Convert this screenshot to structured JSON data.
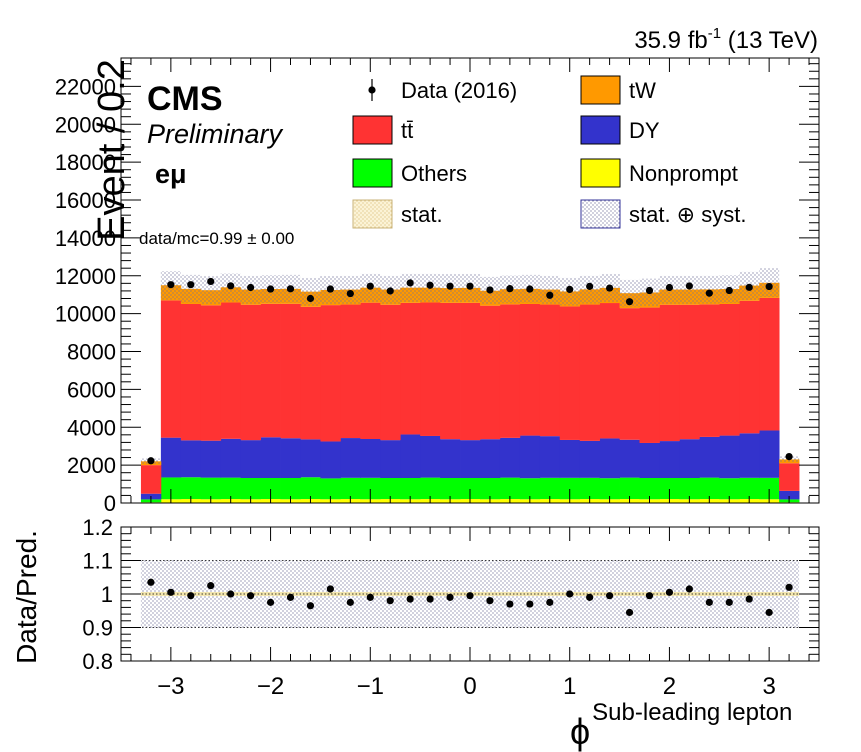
{
  "header": {
    "lumi_value": "35.9 fb",
    "lumi_sup": "-1",
    "lumi_energy": " (13 TeV)",
    "cms": "CMS",
    "preliminary": "Preliminary",
    "channel": "eμ",
    "ratio_text": "data/mc=0.99 ± 0.00"
  },
  "legend": [
    {
      "label": "Data (2016)",
      "kind": "data",
      "color": "#000000"
    },
    {
      "label": "tW",
      "kind": "fill",
      "color": "#ff9900"
    },
    {
      "label": "tt̄",
      "kind": "fill",
      "color": "#ff3333"
    },
    {
      "label": "DY",
      "kind": "fill",
      "color": "#3333cc"
    },
    {
      "label": "Others",
      "kind": "fill",
      "color": "#00ff00"
    },
    {
      "label": "Nonprompt",
      "kind": "fill",
      "color": "#ffff00"
    },
    {
      "label": "stat.",
      "kind": "hatch-stat",
      "color": "#f0e0a0"
    },
    {
      "label": "stat. ⊕ syst.",
      "kind": "hatch-syst",
      "color": "#8888aa"
    }
  ],
  "chart_data": [
    {
      "type": "bar",
      "stacked": true,
      "xlabel": "ϕ",
      "xlabel_sub": "Sub-leading lepton",
      "ylabel": "Event / 0.2",
      "xlim": [
        -3.5,
        3.5
      ],
      "ylim": [
        0,
        23500
      ],
      "yticks": [
        0,
        2000,
        4000,
        6000,
        8000,
        10000,
        12000,
        14000,
        16000,
        18000,
        20000,
        22000
      ],
      "bin_edges": [
        -3.3,
        -3.1,
        -2.9,
        -2.7,
        -2.5,
        -2.3,
        -2.1,
        -1.9,
        -1.7,
        -1.5,
        -1.3,
        -1.1,
        -0.9,
        -0.7,
        -0.5,
        -0.3,
        -0.1,
        0.1,
        0.3,
        0.5,
        0.7,
        0.9,
        1.1,
        1.3,
        1.5,
        1.7,
        1.9,
        2.1,
        2.3,
        2.5,
        2.7,
        2.9,
        3.1,
        3.3
      ],
      "series": [
        {
          "name": "Nonprompt",
          "color": "#ffff00",
          "values": [
            40,
            200,
            210,
            200,
            210,
            200,
            210,
            200,
            210,
            200,
            210,
            200,
            210,
            200,
            210,
            200,
            210,
            200,
            210,
            200,
            210,
            200,
            210,
            200,
            210,
            200,
            210,
            200,
            210,
            200,
            210,
            200,
            40
          ]
        },
        {
          "name": "Others",
          "color": "#00ff00",
          "values": [
            150,
            1150,
            1150,
            1140,
            1130,
            1120,
            1110,
            1120,
            1150,
            1100,
            1120,
            1130,
            1110,
            1120,
            1130,
            1120,
            1110,
            1120,
            1130,
            1110,
            1120,
            1130,
            1120,
            1110,
            1130,
            1120,
            1110,
            1120,
            1130,
            1110,
            1120,
            1130,
            150
          ]
        },
        {
          "name": "DY",
          "color": "#3333cc",
          "values": [
            300,
            2100,
            1950,
            1950,
            2050,
            2000,
            2150,
            2100,
            2000,
            1950,
            2100,
            2050,
            2000,
            2300,
            2200,
            2050,
            2000,
            2050,
            2100,
            2250,
            2200,
            2000,
            1950,
            2100,
            2000,
            1850,
            1950,
            2050,
            2150,
            2250,
            2350,
            2500,
            450
          ]
        },
        {
          "name": "tt̄",
          "color": "#ff3333",
          "values": [
            1510,
            7250,
            7200,
            7150,
            7200,
            7150,
            7050,
            7100,
            7000,
            7200,
            7050,
            7200,
            7150,
            6950,
            7050,
            7200,
            7250,
            7050,
            7050,
            6950,
            6950,
            7050,
            7200,
            7150,
            6950,
            7150,
            7200,
            7100,
            7000,
            6950,
            7000,
            7000,
            1460
          ]
        },
        {
          "name": "tW",
          "color": "#ff9900",
          "values": [
            200,
            800,
            800,
            800,
            800,
            800,
            780,
            790,
            800,
            800,
            790,
            790,
            800,
            800,
            780,
            780,
            790,
            790,
            800,
            800,
            790,
            790,
            800,
            800,
            790,
            800,
            800,
            800,
            790,
            790,
            800,
            800,
            200
          ]
        },
        {
          "name": "Data (2016)",
          "kind": "data",
          "values": [
            2230,
            11530,
            11530,
            11700,
            11470,
            11380,
            11300,
            11310,
            10800,
            11300,
            11060,
            11450,
            11200,
            11620,
            11500,
            11450,
            11450,
            11250,
            11320,
            11300,
            10970,
            11280,
            11440,
            11350,
            10630,
            11220,
            11380,
            11460,
            11080,
            11220,
            11390,
            11430,
            2450
          ]
        }
      ]
    },
    {
      "type": "scatter",
      "xlabel": "ϕ",
      "ylabel": "Data/Pred.",
      "xlim": [
        -3.5,
        3.5
      ],
      "ylim": [
        0.8,
        1.2
      ],
      "yticks": [
        0.8,
        0.9,
        1,
        1.1,
        1.2
      ],
      "xticks": [
        -3,
        -2,
        -1,
        0,
        1,
        2,
        3
      ],
      "x": [
        -3.2,
        -3.0,
        -2.8,
        -2.6,
        -2.4,
        -2.2,
        -2.0,
        -1.8,
        -1.6,
        -1.4,
        -1.2,
        -1.0,
        -0.8,
        -0.6,
        -0.4,
        -0.2,
        0.0,
        0.2,
        0.4,
        0.6,
        0.8,
        1.0,
        1.2,
        1.4,
        1.6,
        1.8,
        2.0,
        2.2,
        2.4,
        2.6,
        2.8,
        3.0,
        3.2
      ],
      "values": [
        1.035,
        1.005,
        0.995,
        1.025,
        1.0,
        0.995,
        0.975,
        0.99,
        0.965,
        1.015,
        0.975,
        0.99,
        0.98,
        0.985,
        0.985,
        0.99,
        0.995,
        0.98,
        0.97,
        0.97,
        0.975,
        1.0,
        0.99,
        0.995,
        0.945,
        0.995,
        1.005,
        1.015,
        0.975,
        0.975,
        0.985,
        0.945,
        1.02
      ]
    }
  ]
}
